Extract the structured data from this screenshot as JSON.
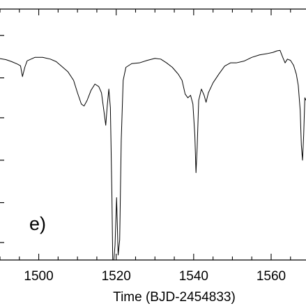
{
  "chart_data": {
    "type": "line",
    "title": "",
    "xlabel": "Time (BJD-2454833)",
    "ylabel": "",
    "annotation": "e)",
    "xlim": [
      1490,
      1569
    ],
    "ylim": [
      0,
      1
    ],
    "y_axis_scale": "normalized (unlabeled in view)",
    "x_ticks": [
      1500,
      1520,
      1540,
      1560
    ],
    "x_tick_labels": [
      "1500",
      "1520",
      "1540",
      "1560"
    ],
    "grid": false,
    "series": [
      {
        "values": [
          [
            1490.0,
            0.807
          ],
          [
            1491.5,
            0.803
          ],
          [
            1493.0,
            0.795
          ],
          [
            1494.5,
            0.785
          ],
          [
            1495.3,
            0.778
          ],
          [
            1495.8,
            0.735
          ],
          [
            1496.4,
            0.772
          ],
          [
            1497.0,
            0.798
          ],
          [
            1499.0,
            0.812
          ],
          [
            1501.0,
            0.812
          ],
          [
            1503.0,
            0.805
          ],
          [
            1504.5,
            0.795
          ],
          [
            1506.0,
            0.775
          ],
          [
            1507.5,
            0.755
          ],
          [
            1509.0,
            0.72
          ],
          [
            1510.0,
            0.67
          ],
          [
            1511.0,
            0.625
          ],
          [
            1511.7,
            0.617
          ],
          [
            1512.5,
            0.64
          ],
          [
            1513.5,
            0.68
          ],
          [
            1514.5,
            0.705
          ],
          [
            1515.5,
            0.695
          ],
          [
            1516.2,
            0.67
          ],
          [
            1516.8,
            0.6
          ],
          [
            1517.3,
            0.54
          ],
          [
            1517.7,
            0.62
          ],
          [
            1518.1,
            0.685
          ],
          [
            1518.5,
            0.61
          ],
          [
            1518.9,
            0.25
          ],
          [
            1519.1,
            0.0
          ],
          [
            1519.4,
            0.0
          ],
          [
            1519.7,
            0.06
          ],
          [
            1520.1,
            0.25
          ],
          [
            1520.5,
            0.02
          ],
          [
            1520.9,
            0.08
          ],
          [
            1521.3,
            0.48
          ],
          [
            1521.8,
            0.72
          ],
          [
            1522.5,
            0.772
          ],
          [
            1524.0,
            0.787
          ],
          [
            1526.0,
            0.79
          ],
          [
            1528.0,
            0.8
          ],
          [
            1530.0,
            0.808
          ],
          [
            1531.5,
            0.805
          ],
          [
            1533.0,
            0.79
          ],
          [
            1534.5,
            0.772
          ],
          [
            1536.0,
            0.745
          ],
          [
            1537.0,
            0.72
          ],
          [
            1537.8,
            0.665
          ],
          [
            1538.5,
            0.65
          ],
          [
            1539.2,
            0.66
          ],
          [
            1539.8,
            0.625
          ],
          [
            1540.3,
            0.5
          ],
          [
            1540.6,
            0.35
          ],
          [
            1540.9,
            0.45
          ],
          [
            1541.3,
            0.64
          ],
          [
            1542.0,
            0.685
          ],
          [
            1542.7,
            0.66
          ],
          [
            1543.2,
            0.632
          ],
          [
            1543.8,
            0.67
          ],
          [
            1545.0,
            0.71
          ],
          [
            1546.5,
            0.745
          ],
          [
            1548.0,
            0.777
          ],
          [
            1549.5,
            0.79
          ],
          [
            1551.0,
            0.79
          ],
          [
            1553.0,
            0.797
          ],
          [
            1555.0,
            0.812
          ],
          [
            1557.0,
            0.822
          ],
          [
            1559.0,
            0.827
          ],
          [
            1560.5,
            0.832
          ],
          [
            1561.5,
            0.838
          ],
          [
            1562.3,
            0.84
          ],
          [
            1563.0,
            0.812
          ],
          [
            1563.6,
            0.79
          ],
          [
            1564.2,
            0.805
          ],
          [
            1565.0,
            0.8
          ],
          [
            1565.8,
            0.78
          ],
          [
            1566.5,
            0.745
          ],
          [
            1567.0,
            0.7
          ],
          [
            1567.5,
            0.6
          ],
          [
            1567.8,
            0.46
          ],
          [
            1568.1,
            0.4
          ],
          [
            1568.4,
            0.5
          ],
          [
            1568.7,
            0.65
          ],
          [
            1569.0,
            0.64
          ]
        ]
      }
    ]
  }
}
